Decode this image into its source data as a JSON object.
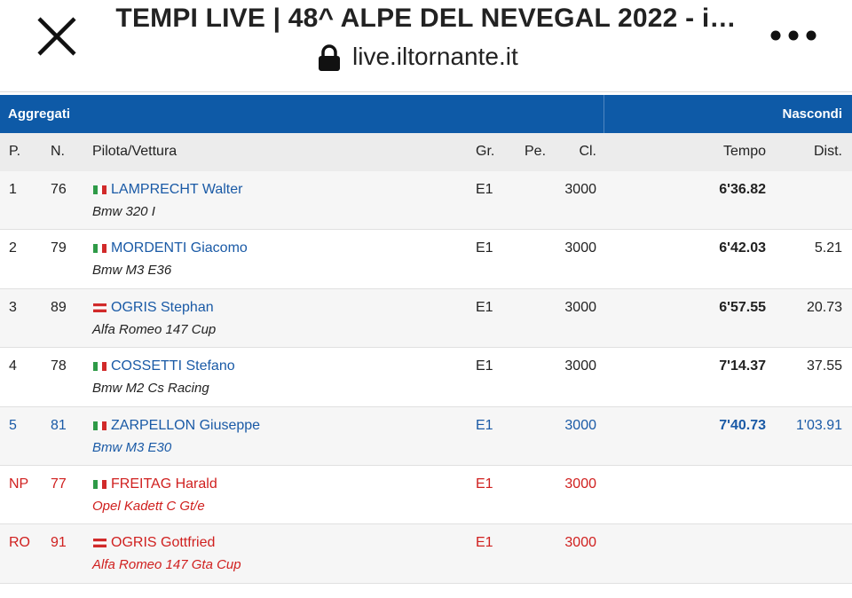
{
  "header": {
    "title": "TEMPI LIVE | 48^ ALPE DEL NEVEGAL 2022 - i…",
    "url": "live.iltornante.it"
  },
  "table": {
    "section": "Aggregati",
    "toggle": "Nascondi",
    "columns": [
      "P.",
      "N.",
      "Pilota/Vettura",
      "Gr.",
      "Pe.",
      "Cl.",
      "Tempo",
      "Dist."
    ],
    "rows": [
      {
        "pos": 1,
        "num": 76,
        "flag": "it",
        "driver": "LAMPRECHT Walter",
        "car": "Bmw 320 I",
        "group": "E1",
        "class": 3000,
        "time": "6'36.82"
      },
      {
        "pos": 2,
        "num": 79,
        "flag": "it",
        "driver": "MORDENTI Giacomo",
        "car": "Bmw M3 E36",
        "group": "E1",
        "class": 3000,
        "time": "6'42.03",
        "dist": "5.21"
      },
      {
        "pos": 3,
        "num": 89,
        "flag": "at",
        "driver": "OGRIS Stephan",
        "car": "Alfa Romeo 147 Cup",
        "group": "E1",
        "class": 3000,
        "time": "6'57.55",
        "dist": "20.73"
      },
      {
        "pos": 4,
        "num": 78,
        "flag": "it",
        "driver": "COSSETTI Stefano",
        "car": "Bmw M2 Cs Racing",
        "group": "E1",
        "class": 3000,
        "time": "7'14.37",
        "dist": "37.55"
      },
      {
        "pos": 5,
        "num": 81,
        "flag": "it",
        "driver": "ZARPELLON Giuseppe",
        "car": "Bmw M3 E30",
        "group": "E1",
        "class": 3000,
        "time": "7'40.73",
        "dist": "1'03.91",
        "color": "#1a5aa6"
      },
      {
        "pos": "NP",
        "num": 77,
        "flag": "it",
        "driver": "FREITAG Harald",
        "car": "Opel Kadett C Gt/e",
        "group": "E1",
        "class": 3000,
        "color": "#d0201f"
      },
      {
        "pos": "RO",
        "num": 91,
        "flag": "at",
        "driver": "OGRIS Gottfried",
        "car": "Alfa Romeo 147 Gta Cup",
        "group": "E1",
        "class": 3000,
        "color": "#d0201f"
      }
    ]
  }
}
